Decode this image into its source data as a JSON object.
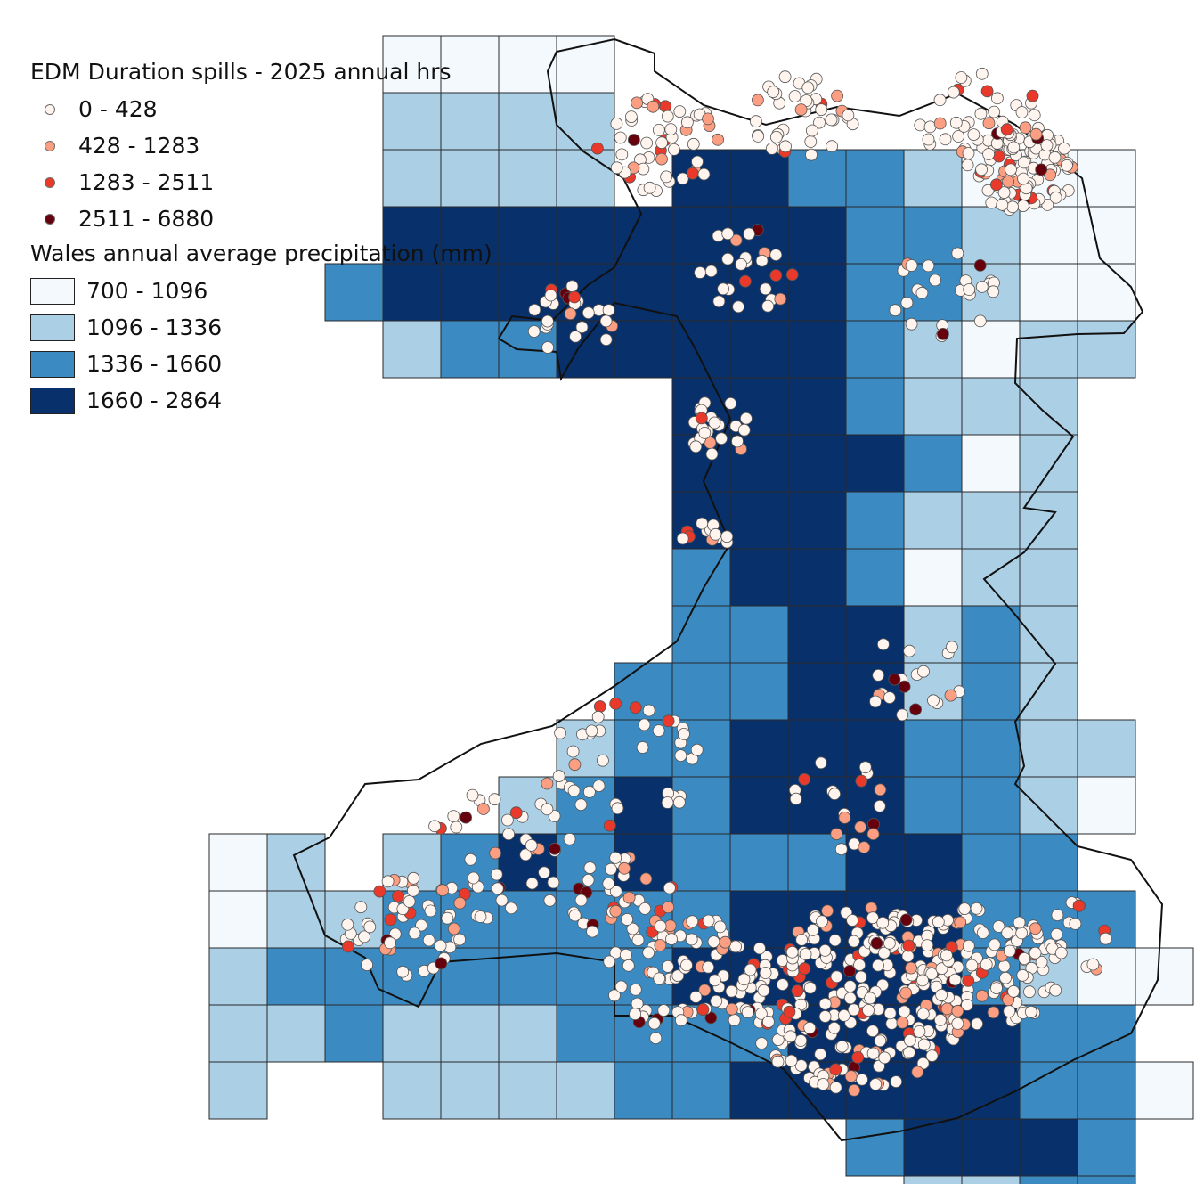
{
  "legend": {
    "spills": {
      "title": "EDM Duration spills - 2025 annual hrs",
      "classes": [
        {
          "label": "0 - 428",
          "color": "#fff4ee"
        },
        {
          "label": "428 - 1283",
          "color": "#fc9e82"
        },
        {
          "label": "1283 - 2511",
          "color": "#e8392b"
        },
        {
          "label": "2511 - 6880",
          "color": "#67000d"
        }
      ]
    },
    "precip": {
      "title": "Wales annual average precipitation (mm)",
      "classes": [
        {
          "label": "700 - 1096",
          "color": "#f4f9fe"
        },
        {
          "label": "1096 - 1336",
          "color": "#abcfe5"
        },
        {
          "label": "1336 - 1660",
          "color": "#3b8bc2"
        },
        {
          "label": "1660 - 2864",
          "color": "#08306b"
        }
      ]
    }
  },
  "map": {
    "grid_rows": [
      "...0000..........",
      "...1111..........",
      "...1111.33221000.",
      "...3333333322100.",
      "..23333333322100.",
      "...1223333321011.",
      "........3332111..",
      "........3333201..",
      "........3332111..",
      "........2332011..",
      "........2233121..",
      ".......22233121..",
      "......1223332211.",
      ".....12323332210.",
      "01.123232223322..",
      "0112222223333222.",
      "12222222333332100",
      "1121112222333322.",
      "1..11112233333220",
      "...........23332.",
      "............1122."
    ]
  }
}
